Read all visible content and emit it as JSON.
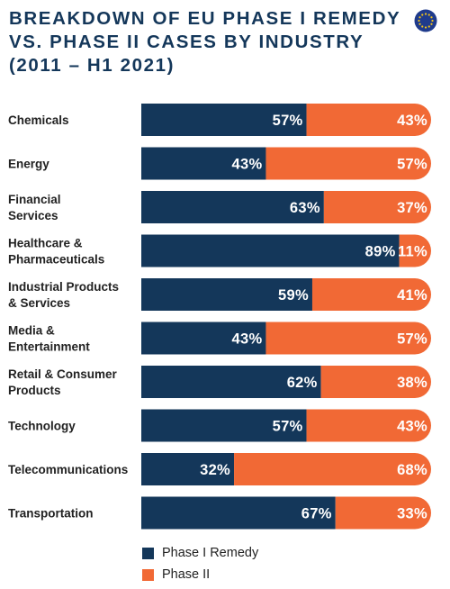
{
  "title_lines": [
    "BREAKDOWN OF EU PHASE I REMEDY",
    "VS. PHASE II CASES BY INDUSTRY",
    "(2011 – H1 2021)"
  ],
  "icons": {
    "logo": "eu-flag-icon"
  },
  "colors": {
    "phase1": "#14375a",
    "phase2": "#f16935",
    "title": "#14375a",
    "flag_blue": "#1f3b8c",
    "flag_stars": "#f5c518"
  },
  "chart_data": {
    "type": "bar",
    "orientation": "horizontal",
    "stacked": true,
    "normalized_percent": true,
    "title": "BREAKDOWN OF EU PHASE I REMEDY VS. PHASE II CASES BY INDUSTRY (2011 – H1 2021)",
    "xlim": [
      0,
      100
    ],
    "grid": false,
    "legend_position": "bottom",
    "categories": [
      [
        "Chemicals"
      ],
      [
        "Energy"
      ],
      [
        "Financial",
        "Services"
      ],
      [
        "Healthcare &",
        "Pharmaceuticals"
      ],
      [
        "Industrial Products",
        "& Services"
      ],
      [
        "Media &",
        "Entertainment"
      ],
      [
        "Retail & Consumer",
        "Products"
      ],
      [
        "Technology"
      ],
      [
        "Telecommunications"
      ],
      [
        "Transportation"
      ]
    ],
    "series": [
      {
        "name": "Phase I Remedy",
        "values": [
          57,
          43,
          63,
          89,
          59,
          43,
          62,
          57,
          32,
          67
        ],
        "labels": [
          "57%",
          "43%",
          "63%",
          "89%",
          "59%",
          "43%",
          "62%",
          "57%",
          "32%",
          "67%"
        ]
      },
      {
        "name": "Phase II",
        "values": [
          43,
          57,
          37,
          11,
          41,
          57,
          38,
          43,
          68,
          33
        ],
        "labels": [
          "43%",
          "57%",
          "37%",
          "11%",
          "41%",
          "57%",
          "38%",
          "43%",
          "68%",
          "33%"
        ]
      }
    ]
  }
}
